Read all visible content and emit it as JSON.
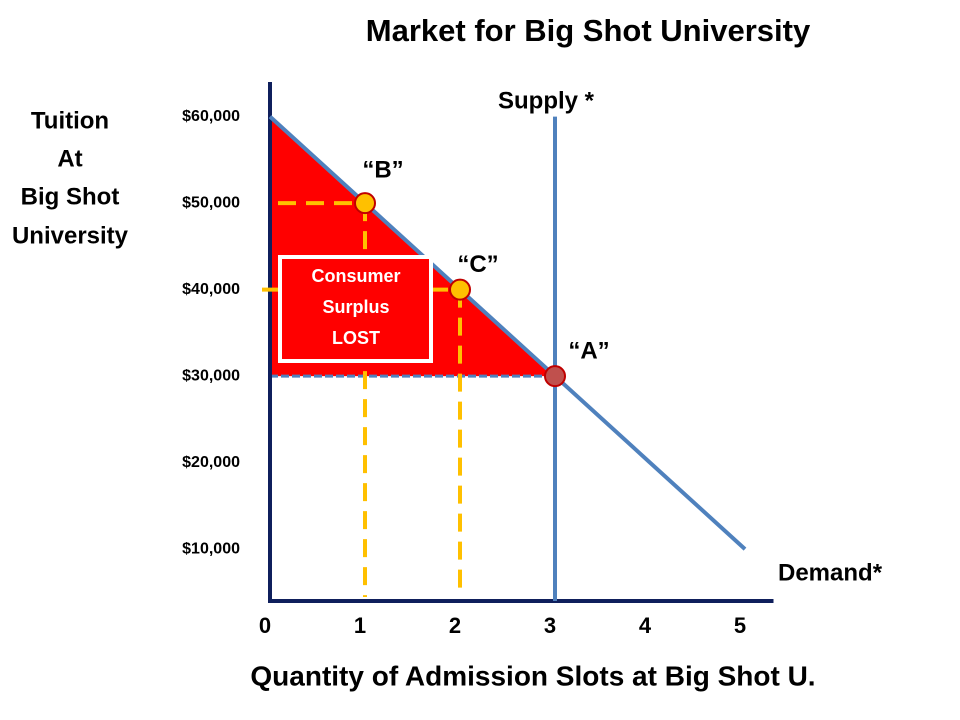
{
  "chart_data": {
    "type": "line",
    "title": "Market for Big Shot University",
    "y_label": [
      "Tuition",
      "At",
      "Big Shot",
      "University"
    ],
    "x_label": "Quantity of Admission Slots at Big Shot U.",
    "xlim": [
      0,
      5.3
    ],
    "xticks": [
      0,
      1,
      2,
      3,
      4,
      5
    ],
    "ylim": [
      4000,
      64000
    ],
    "yticks": [
      {
        "value": 10000,
        "label": "$10,000"
      },
      {
        "value": 20000,
        "label": "$20,000"
      },
      {
        "value": 30000,
        "label": "$30,000"
      },
      {
        "value": 40000,
        "label": "$40,000"
      },
      {
        "value": 50000,
        "label": "$50,000"
      },
      {
        "value": 60000,
        "label": "$60,000"
      }
    ],
    "series": [
      {
        "name": "Demand*",
        "color": "#4f81bd",
        "x": [
          0,
          1,
          2,
          3,
          4,
          5
        ],
        "values": [
          60000,
          50000,
          40000,
          30000,
          20000,
          10000
        ]
      },
      {
        "name": "Supply *",
        "color": "#4f81bd",
        "x": [
          3,
          3
        ],
        "values": [
          4000,
          60000
        ]
      }
    ],
    "points": [
      {
        "label": "“A”",
        "x": 3,
        "y": 30000,
        "color": "#c0504d"
      },
      {
        "label": "“B”",
        "x": 1,
        "y": 50000,
        "color": "#ffc000"
      },
      {
        "label": "“C”",
        "x": 2,
        "y": 40000,
        "color": "#ffc000"
      }
    ],
    "guide_color": "#ffc000",
    "surplus_color": "#ff0000",
    "annotation": [
      "Consumer",
      "Surplus",
      "LOST"
    ]
  }
}
